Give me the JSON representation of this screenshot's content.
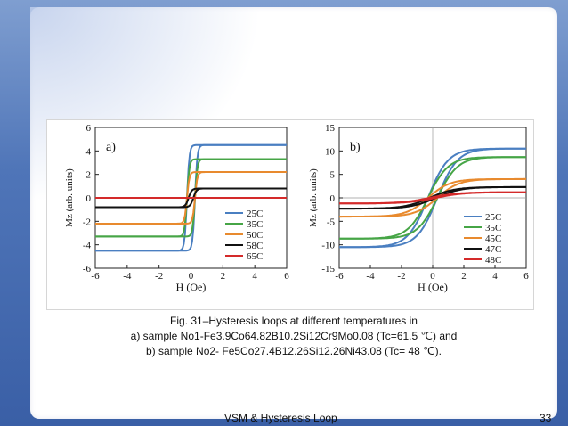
{
  "caption": {
    "line1": "Fig. 31–Hysteresis loops at different temperatures in",
    "line2": "a) sample No1-Fe3.9Co64.82B10.2Si12Cr9Mo0.08 (Tc=61.5 ℃) and",
    "line3": "b) sample No2- Fe5Co27.4B12.26Si12.26Ni43.08 (Tc= 48 ℃)."
  },
  "footer": {
    "title": "VSM & Hysteresis Loop",
    "page": "33"
  },
  "chart_data": [
    {
      "type": "line",
      "panel_label": "a)",
      "xlabel": "H (Oe)",
      "ylabel": "Mz (arb. units)",
      "xlim": [
        -6,
        6
      ],
      "ylim": [
        -6,
        6
      ],
      "xticks": [
        -6,
        -4,
        -2,
        0,
        2,
        4,
        6
      ],
      "yticks": [
        6,
        4,
        2,
        0,
        -2,
        -4,
        -6
      ],
      "x": [
        -6,
        -0.6,
        -0.2,
        0.2,
        0.6,
        6
      ],
      "series": [
        {
          "name": "25C",
          "color": "#4a7fc1",
          "loop": true,
          "saturation": 4.5,
          "coercivity": 0.25,
          "width": 0.15
        },
        {
          "name": "35C",
          "color": "#46a546",
          "loop": true,
          "saturation": 3.3,
          "coercivity": 0.25,
          "width": 0.15
        },
        {
          "name": "50C",
          "color": "#e88a2e",
          "loop": true,
          "saturation": 2.2,
          "coercivity": 0.25,
          "width": 0.15
        },
        {
          "name": "58C",
          "color": "#111111",
          "loop": true,
          "saturation": 0.8,
          "coercivity": 0.15,
          "width": 0.2
        },
        {
          "name": "65C",
          "color": "#d42a2a",
          "loop": false,
          "saturation": 0.0,
          "coercivity": 0.0,
          "width": 1
        }
      ],
      "legend": "bottom-right",
      "grid": false
    },
    {
      "type": "line",
      "panel_label": "b)",
      "xlabel": "H (Oe)",
      "ylabel": "Mz (arb. units)",
      "xlim": [
        -6,
        6
      ],
      "ylim": [
        -15,
        15
      ],
      "xticks": [
        -6,
        -4,
        -2,
        0,
        2,
        4,
        6
      ],
      "yticks": [
        15,
        10,
        5,
        0,
        -5,
        -10,
        -15
      ],
      "series": [
        {
          "name": "25C",
          "color": "#4a7fc1",
          "loop": true,
          "saturation": 10.5,
          "coercivity": 0.3,
          "width": 1.3
        },
        {
          "name": "35C",
          "color": "#46a546",
          "loop": true,
          "saturation": 8.7,
          "coercivity": 0.3,
          "width": 1.3
        },
        {
          "name": "45C",
          "color": "#e88a2e",
          "loop": true,
          "saturation": 4.0,
          "coercivity": 0.3,
          "width": 1.4
        },
        {
          "name": "47C",
          "color": "#111111",
          "loop": true,
          "saturation": 2.3,
          "coercivity": 0.2,
          "width": 1.6
        },
        {
          "name": "48C",
          "color": "#d42a2a",
          "loop": true,
          "saturation": 1.2,
          "coercivity": 0.2,
          "width": 1.8
        }
      ],
      "legend": "bottom-right",
      "grid": false
    }
  ]
}
